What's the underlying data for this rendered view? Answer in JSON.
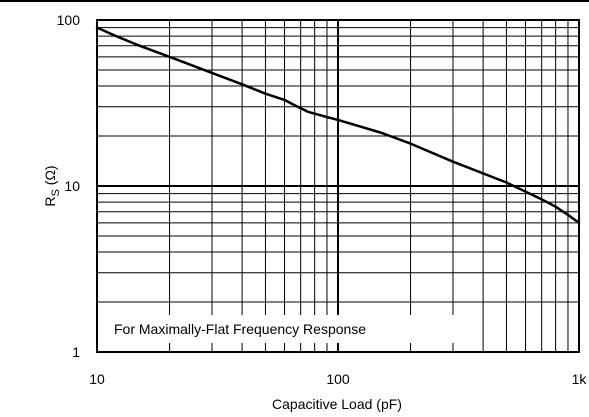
{
  "chart_data": {
    "type": "line",
    "xscale": "log",
    "yscale": "log",
    "xlim": [
      10,
      1000
    ],
    "ylim": [
      1,
      100
    ],
    "grid": true,
    "xlabel": "Capacitive Load (pF)",
    "ylabel": {
      "main": "R",
      "subscript": "S",
      "unit": " (Ω)"
    },
    "x_ticks": [
      {
        "value": 10,
        "label": "10"
      },
      {
        "value": 100,
        "label": "100"
      },
      {
        "value": 1000,
        "label": "1k"
      }
    ],
    "y_ticks": [
      {
        "value": 1,
        "label": "1"
      },
      {
        "value": 10,
        "label": "10"
      },
      {
        "value": 100,
        "label": "100"
      }
    ],
    "annotation": "For Maximally-Flat Frequency Response",
    "series": [
      {
        "color": "#000000",
        "x": [
          10,
          12,
          15,
          20,
          30,
          40,
          50,
          60,
          65,
          75,
          90,
          100,
          150,
          200,
          300,
          500,
          700,
          800,
          900,
          1000
        ],
        "y": [
          90,
          80,
          70,
          60,
          48,
          41,
          36,
          33,
          31,
          28,
          26,
          25,
          21,
          18,
          14,
          10.5,
          8.3,
          7.5,
          6.7,
          6
        ]
      }
    ]
  }
}
